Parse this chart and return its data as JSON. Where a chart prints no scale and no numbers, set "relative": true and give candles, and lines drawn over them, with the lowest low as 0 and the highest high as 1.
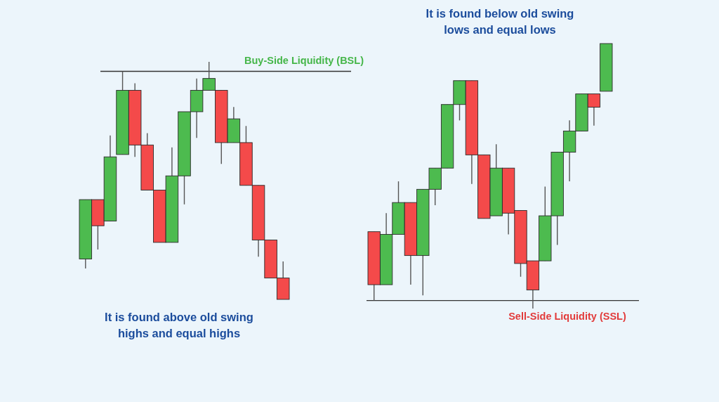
{
  "chart_data": [
    {
      "type": "candlestick",
      "relative": true,
      "categories": [
        null,
        null,
        null,
        null,
        null,
        null,
        null,
        null,
        null,
        null,
        null,
        null,
        null,
        null,
        null,
        null,
        null
      ],
      "ohlc": [
        [
          0.17,
          0.42,
          0.13,
          0.42
        ],
        [
          0.42,
          0.42,
          0.21,
          0.31
        ],
        [
          0.33,
          0.69,
          0.33,
          0.6
        ],
        [
          0.61,
          0.96,
          0.61,
          0.88
        ],
        [
          0.88,
          0.91,
          0.6,
          0.65
        ],
        [
          0.65,
          0.7,
          0.46,
          0.46
        ],
        [
          0.46,
          0.46,
          0.24,
          0.24
        ],
        [
          0.24,
          0.64,
          0.24,
          0.52
        ],
        [
          0.52,
          0.79,
          0.4,
          0.79
        ],
        [
          0.79,
          0.93,
          0.68,
          0.88
        ],
        [
          0.88,
          1,
          0.88,
          0.93
        ],
        [
          0.88,
          0.88,
          0.57,
          0.66
        ],
        [
          0.66,
          0.81,
          0.66,
          0.76
        ],
        [
          0.66,
          0.73,
          0.48,
          0.48
        ],
        [
          0.48,
          0.48,
          0.18,
          0.25
        ],
        [
          0.25,
          0.25,
          0.09,
          0.09
        ],
        [
          0.09,
          0.16,
          0,
          0
        ]
      ],
      "colors": [
        "#4dbb4f",
        "#f44a4a",
        "#4dbb4f",
        "#4dbb4f",
        "#f44a4a",
        "#f44a4a",
        "#f44a4a",
        "#4dbb4f",
        "#4dbb4f",
        "#4dbb4f",
        "#4dbb4f",
        "#f44a4a",
        "#4dbb4f",
        "#f44a4a",
        "#f44a4a",
        "#f44a4a",
        "#f44a4a"
      ],
      "ref_lines": [
        {
          "axis": "y",
          "value": 0.96,
          "label": "Buy-Side Liquidity (BSL)",
          "color": "#333333"
        }
      ],
      "annotations": [
        "It is found above old swing highs and equal highs"
      ]
    },
    {
      "type": "candlestick",
      "relative": true,
      "categories": [
        null,
        null,
        null,
        null,
        null,
        null,
        null,
        null,
        null,
        null,
        null,
        null,
        null,
        null,
        null,
        null,
        null,
        null,
        null,
        null
      ],
      "ohlc": [
        [
          0.29,
          0.29,
          0.03,
          0.09
        ],
        [
          0.09,
          0.36,
          0.09,
          0.28
        ],
        [
          0.28,
          0.48,
          0.28,
          0.4
        ],
        [
          0.4,
          0.4,
          0.09,
          0.2
        ],
        [
          0.2,
          0.45,
          0.05,
          0.45
        ],
        [
          0.45,
          0.53,
          0.39,
          0.53
        ],
        [
          0.53,
          0.77,
          0.53,
          0.77
        ],
        [
          0.77,
          0.86,
          0.71,
          0.86
        ],
        [
          0.86,
          0.86,
          0.47,
          0.58
        ],
        [
          0.58,
          0.58,
          0.34,
          0.34
        ],
        [
          0.35,
          0.62,
          0.35,
          0.53
        ],
        [
          0.53,
          0.53,
          0.28,
          0.36
        ],
        [
          0.37,
          0.37,
          0.12,
          0.17
        ],
        [
          0.18,
          0.18,
          0,
          0.07
        ],
        [
          0.18,
          0.46,
          0.18,
          0.35
        ],
        [
          0.35,
          0.59,
          0.24,
          0.59
        ],
        [
          0.59,
          0.71,
          0.48,
          0.67
        ],
        [
          0.67,
          0.81,
          0.67,
          0.81
        ],
        [
          0.81,
          0.81,
          0.69,
          0.76
        ],
        [
          0.82,
          1,
          0.82,
          1
        ]
      ],
      "colors": [
        "#f44a4a",
        "#4dbb4f",
        "#4dbb4f",
        "#f44a4a",
        "#4dbb4f",
        "#4dbb4f",
        "#4dbb4f",
        "#4dbb4f",
        "#f44a4a",
        "#f44a4a",
        "#4dbb4f",
        "#f44a4a",
        "#f44a4a",
        "#f44a4a",
        "#4dbb4f",
        "#4dbb4f",
        "#4dbb4f",
        "#4dbb4f",
        "#f44a4a",
        "#4dbb4f"
      ],
      "ref_lines": [
        {
          "axis": "y",
          "value": 0.03,
          "label": "Sell-Side Liquidity (SSL)",
          "color": "#333333"
        }
      ],
      "annotations": [
        "It is found below old swing lows and equal lows"
      ]
    }
  ]
}
